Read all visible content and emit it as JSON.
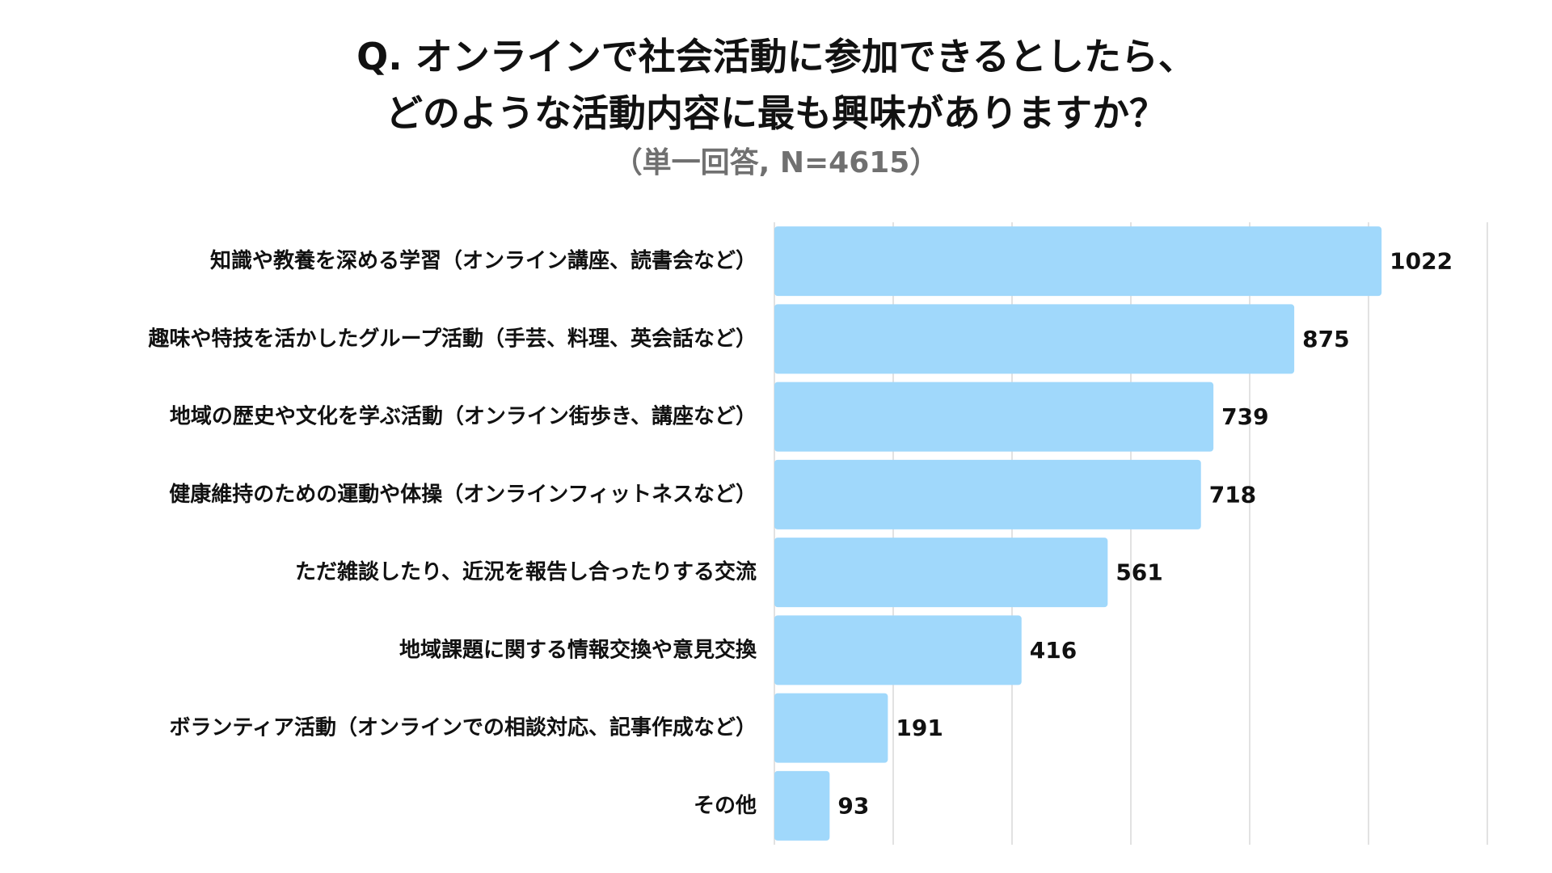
{
  "chart_data": {
    "type": "bar",
    "orientation": "horizontal",
    "title_lines": [
      "Q. オンラインで社会活動に参加できるとしたら、",
      "どのような活動内容に最も興味がありますか？"
    ],
    "subtitle": "（単一回答, N=4615）",
    "categories": [
      "知識や教養を深める学習（オンライン講座、読書会など）",
      "趣味や特技を活かしたグループ活動（手芸、料理、英会話など）",
      "地域の歴史や文化を学ぶ活動（オンライン街歩き、講座など）",
      "健康維持のための運動や体操（オンラインフィットネスなど）",
      "ただ雑談したり、近況を報告し合ったりする交流",
      "地域課題に関する情報交換や意見交換",
      "ボランティア活動（オンラインでの相談対応、記事作成など）",
      "その他"
    ],
    "values": [
      1022,
      875,
      739,
      718,
      561,
      416,
      191,
      93
    ],
    "xlim": [
      0,
      1200
    ],
    "grid_step": 200,
    "grid": true,
    "legend": "none",
    "bar_color": "#a0d8fb",
    "grid_color": "#d9d9d9"
  }
}
